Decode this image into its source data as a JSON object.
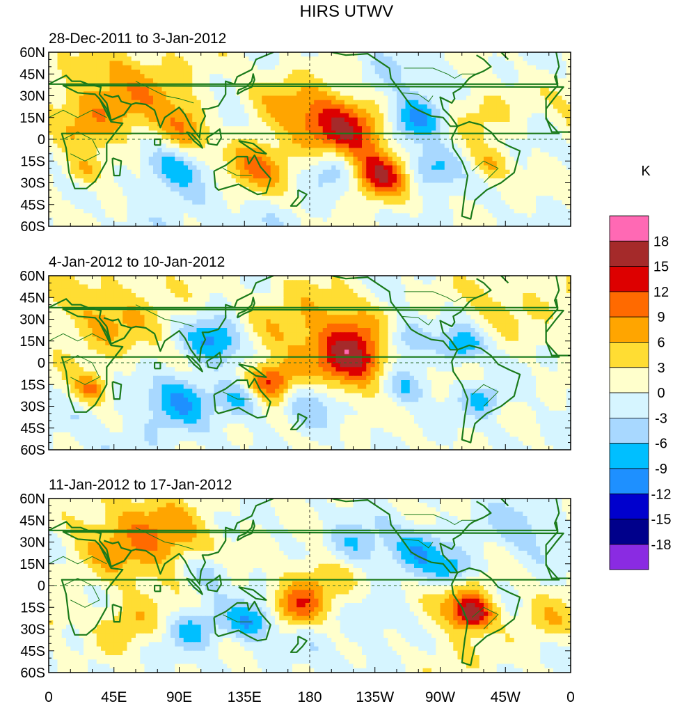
{
  "chart_data": {
    "type": "heatmap",
    "title": "HIRS UTWV",
    "colorbar": {
      "unit": "K",
      "levels": [
        "18",
        "15",
        "12",
        "9",
        "6",
        "3",
        "0",
        "-3",
        "-6",
        "-9",
        "-12",
        "-15",
        "-18"
      ],
      "colors": [
        "#ff69b4",
        "#a52a2a",
        "#dd0000",
        "#ff6a00",
        "#ffa500",
        "#ffdd33",
        "#ffffcc",
        "#d6f5ff",
        "#a8d8ff",
        "#00bfff",
        "#1e90ff",
        "#0000cd",
        "#00008b",
        "#8a2be2"
      ]
    },
    "xaxis": {
      "ticks": [
        "0",
        "45E",
        "90E",
        "135E",
        "180",
        "135W",
        "90W",
        "45W",
        "0"
      ],
      "range": [
        0,
        360
      ]
    },
    "yaxis": {
      "ticks": [
        "60N",
        "45N",
        "30N",
        "15N",
        "0",
        "15S",
        "30S",
        "45S",
        "60S"
      ],
      "range": [
        60,
        -60
      ]
    },
    "panels": [
      {
        "subtitle": "28-Dec-2011 to 3-Jan-2012",
        "anomalies": [
          {
            "lon": 205,
            "lat": 8,
            "r": 22,
            "v": 13
          },
          {
            "lon": 228,
            "lat": -25,
            "r": 14,
            "v": 14
          },
          {
            "lon": 140,
            "lat": -20,
            "r": 16,
            "v": 10
          },
          {
            "lon": 55,
            "lat": 35,
            "r": 30,
            "v": 7
          },
          {
            "lon": 95,
            "lat": 8,
            "r": 15,
            "v": 8
          },
          {
            "lon": 25,
            "lat": 15,
            "r": 18,
            "v": 5
          },
          {
            "lon": 25,
            "lat": -22,
            "r": 10,
            "v": 6
          },
          {
            "lon": 305,
            "lat": -18,
            "r": 10,
            "v": 6
          },
          {
            "lon": 170,
            "lat": 20,
            "r": 25,
            "v": 5
          },
          {
            "lon": 298,
            "lat": 20,
            "r": 15,
            "v": 5
          },
          {
            "lon": 252,
            "lat": 15,
            "r": 14,
            "v": -10
          },
          {
            "lon": 85,
            "lat": -20,
            "r": 14,
            "v": -8
          },
          {
            "lon": 195,
            "lat": -20,
            "r": 14,
            "v": -7
          },
          {
            "lon": 265,
            "lat": -20,
            "r": 12,
            "v": -8
          },
          {
            "lon": 230,
            "lat": 40,
            "r": 20,
            "v": -4
          },
          {
            "lon": 120,
            "lat": 10,
            "r": 12,
            "v": -5
          },
          {
            "lon": 120,
            "lat": -50,
            "r": 30,
            "v": -2
          }
        ]
      },
      {
        "subtitle": "4-Jan-2012 to 10-Jan-2012",
        "anomalies": [
          {
            "lon": 212,
            "lat": 7,
            "r": 22,
            "v": 17
          },
          {
            "lon": 152,
            "lat": -14,
            "r": 12,
            "v": 15
          },
          {
            "lon": 30,
            "lat": -18,
            "r": 9,
            "v": 9
          },
          {
            "lon": 40,
            "lat": 32,
            "r": 30,
            "v": 6
          },
          {
            "lon": 170,
            "lat": 30,
            "r": 25,
            "v": 5
          },
          {
            "lon": 315,
            "lat": 45,
            "r": 20,
            "v": 4
          },
          {
            "lon": 240,
            "lat": 15,
            "r": 14,
            "v": -10
          },
          {
            "lon": 115,
            "lat": 15,
            "r": 14,
            "v": -10
          },
          {
            "lon": 90,
            "lat": -25,
            "r": 15,
            "v": -8
          },
          {
            "lon": 135,
            "lat": -25,
            "r": 12,
            "v": -8
          },
          {
            "lon": 245,
            "lat": -15,
            "r": 12,
            "v": -7
          },
          {
            "lon": 285,
            "lat": 12,
            "r": 10,
            "v": -9
          },
          {
            "lon": 180,
            "lat": -25,
            "r": 15,
            "v": -5
          },
          {
            "lon": 300,
            "lat": -25,
            "r": 10,
            "v": -7
          },
          {
            "lon": 60,
            "lat": -45,
            "r": 30,
            "v": -2
          }
        ]
      },
      {
        "subtitle": "11-Jan-2012 to 17-Jan-2012",
        "anomalies": [
          {
            "lon": 293,
            "lat": -20,
            "r": 10,
            "v": 15
          },
          {
            "lon": 285,
            "lat": -8,
            "r": 14,
            "v": 7
          },
          {
            "lon": 170,
            "lat": -15,
            "r": 12,
            "v": 9
          },
          {
            "lon": 190,
            "lat": 5,
            "r": 18,
            "v": 7
          },
          {
            "lon": 80,
            "lat": 30,
            "r": 25,
            "v": 7
          },
          {
            "lon": 45,
            "lat": 35,
            "r": 25,
            "v": 5
          },
          {
            "lon": 55,
            "lat": -25,
            "r": 15,
            "v": 6
          },
          {
            "lon": 345,
            "lat": -25,
            "r": 15,
            "v": 5
          },
          {
            "lon": 270,
            "lat": -50,
            "r": 20,
            "v": 4
          },
          {
            "lon": 210,
            "lat": 25,
            "r": 15,
            "v": -7
          },
          {
            "lon": 255,
            "lat": 25,
            "r": 14,
            "v": -8
          },
          {
            "lon": 140,
            "lat": -25,
            "r": 12,
            "v": -9
          },
          {
            "lon": 280,
            "lat": 10,
            "r": 10,
            "v": -8
          },
          {
            "lon": 110,
            "lat": 10,
            "r": 12,
            "v": -6
          },
          {
            "lon": 100,
            "lat": -30,
            "r": 12,
            "v": -7
          },
          {
            "lon": 330,
            "lat": 40,
            "r": 20,
            "v": -4
          },
          {
            "lon": 230,
            "lat": -45,
            "r": 30,
            "v": -2
          }
        ]
      }
    ]
  }
}
